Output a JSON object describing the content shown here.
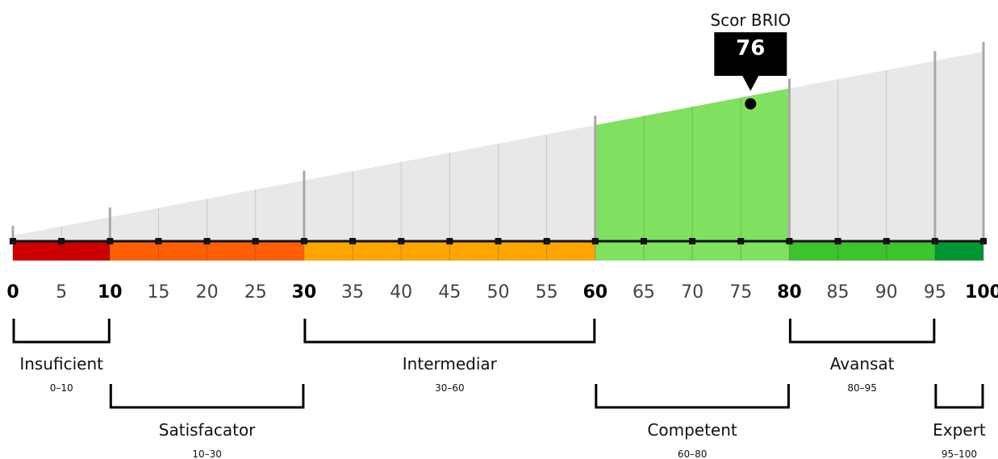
{
  "chart_data": {
    "type": "gauge",
    "title": "Scor BRIO",
    "score": 76,
    "xlim": [
      0,
      100
    ],
    "ticks": [
      0,
      5,
      10,
      15,
      20,
      25,
      30,
      35,
      40,
      45,
      50,
      55,
      60,
      65,
      70,
      75,
      80,
      85,
      90,
      95,
      100
    ],
    "major_ticks": [
      0,
      10,
      30,
      60,
      80,
      100
    ],
    "boundary_ticks": [
      0,
      10,
      30,
      60,
      80,
      95,
      100
    ],
    "bands": [
      {
        "name": "Insuficient",
        "range_label": "0–10",
        "from": 0,
        "to": 10,
        "color": "#cc0000",
        "row": "top"
      },
      {
        "name": "Satisfacator",
        "range_label": "10–30",
        "from": 10,
        "to": 30,
        "color": "#ff5f00",
        "row": "bottom"
      },
      {
        "name": "Intermediar",
        "range_label": "30–60",
        "from": 30,
        "to": 60,
        "color": "#ffa500",
        "row": "top"
      },
      {
        "name": "Competent",
        "range_label": "60–80",
        "from": 60,
        "to": 80,
        "color": "#80e060",
        "row": "bottom"
      },
      {
        "name": "Avansat",
        "range_label": "80–95",
        "from": 80,
        "to": 95,
        "color": "#3cc32d",
        "row": "top"
      },
      {
        "name": "Expert",
        "range_label": "95–100",
        "from": 95,
        "to": 100,
        "color": "#009632",
        "row": "bottom"
      }
    ],
    "highlight_band": "Competent",
    "wedge_color": "#e8e8e8",
    "highlight_color": "#80e060"
  }
}
